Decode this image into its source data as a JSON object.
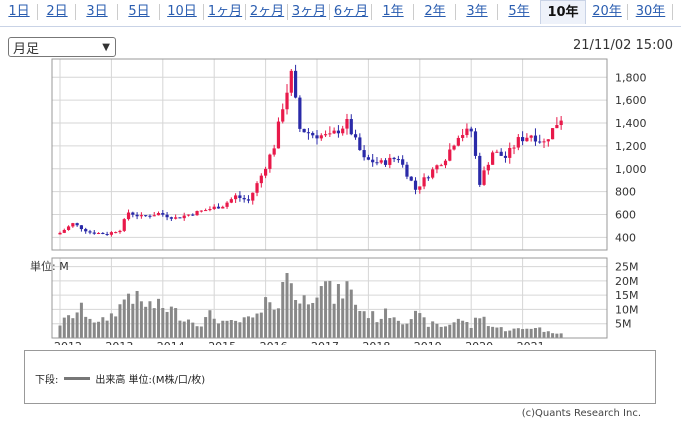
{
  "tabs": [
    {
      "label": "1日"
    },
    {
      "label": "2日"
    },
    {
      "label": "3日"
    },
    {
      "label": "5日"
    },
    {
      "label": "10日"
    },
    {
      "label": "1ヶ月"
    },
    {
      "label": "2ヶ月"
    },
    {
      "label": "3ヶ月"
    },
    {
      "label": "6ヶ月"
    },
    {
      "label": "1年"
    },
    {
      "label": "2年"
    },
    {
      "label": "3年"
    },
    {
      "label": "5年"
    },
    {
      "label": "10年",
      "active": true
    },
    {
      "label": "20年"
    },
    {
      "label": "30年"
    }
  ],
  "period_select": {
    "value": "月足"
  },
  "timestamp": "21/11/02 15:00",
  "volume_panel": {
    "unit_label": "単位: M"
  },
  "legend": {
    "prefix": "下段:",
    "text": "出来高 単位:(M株/口/枚)"
  },
  "copyright": "(c)Quants Research Inc.",
  "colors": {
    "up": "#e8194a",
    "down": "#2a2aa8",
    "volume": "#888888",
    "grid": "#d6d6d6"
  },
  "chart_data": [
    {
      "type": "candlestick",
      "interval": "monthly",
      "x_labels": [
        "2012",
        "2013",
        "2014",
        "2015",
        "2016",
        "2017",
        "2018",
        "2019",
        "2020",
        "2021"
      ],
      "y_ticks": [
        400,
        600,
        800,
        1000,
        1200,
        1400,
        1600,
        1800
      ],
      "y_tick_labels": [
        "400",
        "600",
        "800",
        "1,000",
        "1,200",
        "1,400",
        "1,600",
        "1,800"
      ],
      "ylim": [
        290,
        1960
      ],
      "grid": true,
      "anchors": [
        {
          "date": "2012-01",
          "close": 440
        },
        {
          "date": "2012-04",
          "close": 520
        },
        {
          "date": "2012-08",
          "close": 445
        },
        {
          "date": "2012-12",
          "close": 430
        },
        {
          "date": "2013-03",
          "close": 470
        },
        {
          "date": "2013-05",
          "close": 620
        },
        {
          "date": "2013-08",
          "close": 580
        },
        {
          "date": "2013-12",
          "close": 610
        },
        {
          "date": "2014-04",
          "close": 570
        },
        {
          "date": "2014-08",
          "close": 610
        },
        {
          "date": "2014-12",
          "close": 650
        },
        {
          "date": "2015-03",
          "close": 680
        },
        {
          "date": "2015-06",
          "close": 760
        },
        {
          "date": "2015-09",
          "close": 720
        },
        {
          "date": "2015-12",
          "close": 940
        },
        {
          "date": "2016-03",
          "close": 1200
        },
        {
          "date": "2016-05",
          "close": 1550
        },
        {
          "date": "2016-07",
          "close": 1820
        },
        {
          "date": "2016-09",
          "close": 1350
        },
        {
          "date": "2016-12",
          "close": 1300
        },
        {
          "date": "2017-04",
          "close": 1280
        },
        {
          "date": "2017-08",
          "close": 1400
        },
        {
          "date": "2017-12",
          "close": 1080
        },
        {
          "date": "2018-04",
          "close": 1050
        },
        {
          "date": "2018-08",
          "close": 1100
        },
        {
          "date": "2018-12",
          "close": 820
        },
        {
          "date": "2019-03",
          "close": 950
        },
        {
          "date": "2019-07",
          "close": 1100
        },
        {
          "date": "2019-10",
          "close": 1300
        },
        {
          "date": "2020-01",
          "close": 1330
        },
        {
          "date": "2020-03",
          "close": 880
        },
        {
          "date": "2020-06",
          "close": 1150
        },
        {
          "date": "2020-09",
          "close": 1100
        },
        {
          "date": "2020-12",
          "close": 1250
        },
        {
          "date": "2021-03",
          "close": 1300
        },
        {
          "date": "2021-06",
          "close": 1230
        },
        {
          "date": "2021-09",
          "close": 1400
        },
        {
          "date": "2021-10",
          "close": 1445
        }
      ]
    },
    {
      "type": "bar",
      "interval": "monthly",
      "ylabel": "単位: M",
      "y_ticks": [
        5,
        10,
        15,
        20,
        25
      ],
      "y_tick_labels": [
        "5M",
        "10M",
        "15M",
        "20M",
        "25M"
      ],
      "ylim": [
        0,
        28
      ],
      "anchors": [
        {
          "date": "2012-01",
          "value": 5
        },
        {
          "date": "2012-03",
          "value": 7
        },
        {
          "date": "2012-06",
          "value": 10
        },
        {
          "date": "2012-10",
          "value": 5
        },
        {
          "date": "2013-01",
          "value": 8
        },
        {
          "date": "2013-03",
          "value": 11
        },
        {
          "date": "2013-05",
          "value": 16
        },
        {
          "date": "2013-08",
          "value": 12
        },
        {
          "date": "2013-12",
          "value": 11
        },
        {
          "date": "2014-03",
          "value": 10
        },
        {
          "date": "2014-06",
          "value": 7
        },
        {
          "date": "2014-10",
          "value": 5
        },
        {
          "date": "2014-12",
          "value": 8
        },
        {
          "date": "2015-04",
          "value": 5
        },
        {
          "date": "2015-08",
          "value": 6
        },
        {
          "date": "2015-12",
          "value": 8
        },
        {
          "date": "2016-02",
          "value": 15
        },
        {
          "date": "2016-04",
          "value": 11
        },
        {
          "date": "2016-06",
          "value": 24
        },
        {
          "date": "2016-09",
          "value": 12
        },
        {
          "date": "2016-12",
          "value": 16
        },
        {
          "date": "2017-02",
          "value": 21
        },
        {
          "date": "2017-05",
          "value": 14
        },
        {
          "date": "2017-08",
          "value": 18
        },
        {
          "date": "2017-11",
          "value": 10
        },
        {
          "date": "2018-03",
          "value": 7
        },
        {
          "date": "2018-06",
          "value": 9
        },
        {
          "date": "2018-09",
          "value": 6
        },
        {
          "date": "2018-12",
          "value": 8
        },
        {
          "date": "2019-03",
          "value": 5
        },
        {
          "date": "2019-07",
          "value": 4
        },
        {
          "date": "2019-10",
          "value": 7
        },
        {
          "date": "2020-01",
          "value": 4
        },
        {
          "date": "2020-03",
          "value": 8
        },
        {
          "date": "2020-06",
          "value": 4
        },
        {
          "date": "2020-09",
          "value": 3
        },
        {
          "date": "2021-01",
          "value": 3
        },
        {
          "date": "2021-04",
          "value": 4
        },
        {
          "date": "2021-07",
          "value": 2
        },
        {
          "date": "2021-10",
          "value": 2
        }
      ]
    }
  ]
}
